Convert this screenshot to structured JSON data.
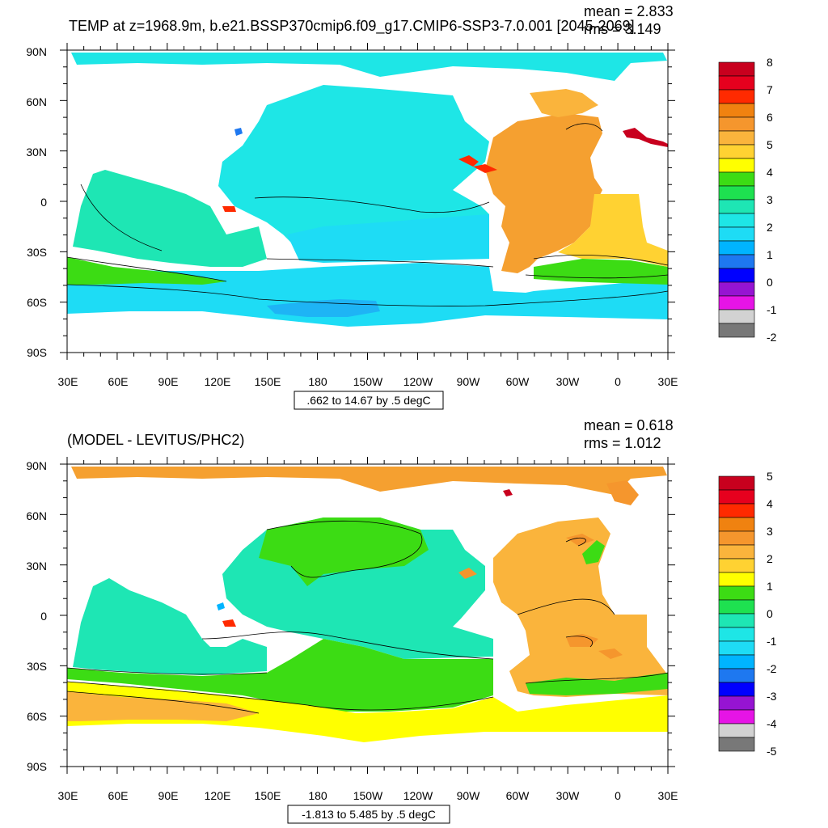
{
  "chart_data": [
    {
      "type": "heatmap",
      "title": "TEMP at z=1968.9m, b.e21.BSSP370cmip6.f09_g17.CMIP6-SSP3-7.0.001 [2045-2069]",
      "stats": {
        "mean": "mean = 2.833",
        "rms": "rms = 3.149"
      },
      "contour_info": ".662 to 14.67 by .5 degC",
      "lat_ticks": [
        "90N",
        "60N",
        "30N",
        "0",
        "30S",
        "60S",
        "90S"
      ],
      "lon_ticks": [
        "30E",
        "60E",
        "90E",
        "120E",
        "150E",
        "180",
        "150W",
        "120W",
        "90W",
        "60W",
        "30W",
        "0",
        "30E"
      ],
      "colorbar_labels": [
        "8",
        "7",
        "6",
        "5",
        "4",
        "3",
        "2",
        "1",
        "0",
        "-1",
        "-2"
      ],
      "colorbar_colors": [
        "#c8001e",
        "#e6001e",
        "#ff2a00",
        "#f08210",
        "#f5962d",
        "#fab43c",
        "#ffd232",
        "#ffff00",
        "#3cdc14",
        "#1ee150",
        "#1ee6b4",
        "#1ee6e6",
        "#1edcf5",
        "#00b4ff",
        "#1e78f0",
        "#0000ff",
        "#9614d2",
        "#e614e6",
        "#d2d2d2",
        "#787878"
      ],
      "regions": [
        {
          "name": "arctic",
          "color": "#1ee6e6"
        },
        {
          "name": "pacific",
          "color": "#1ee6e6"
        },
        {
          "name": "indian",
          "color": "#1ee6b4"
        },
        {
          "name": "southern",
          "color": "#1edcf5"
        },
        {
          "name": "atlantic",
          "color": "#f5962d"
        }
      ]
    },
    {
      "type": "heatmap",
      "title": "(MODEL - LEVITUS/PHC2)",
      "stats": {
        "mean": "mean = 0.618",
        "rms": "rms = 1.012"
      },
      "contour_info": "-1.813 to 5.485 by .5 degC",
      "lat_ticks": [
        "90N",
        "60N",
        "30N",
        "0",
        "30S",
        "60S",
        "90S"
      ],
      "lon_ticks": [
        "30E",
        "60E",
        "90E",
        "120E",
        "150E",
        "180",
        "150W",
        "120W",
        "90W",
        "60W",
        "30W",
        "0",
        "30E"
      ],
      "colorbar_labels": [
        "5",
        "4",
        "3",
        "2",
        "1",
        "0",
        "-1",
        "-2",
        "-3",
        "-4",
        "-5"
      ],
      "colorbar_colors": [
        "#c8001e",
        "#e6001e",
        "#ff2a00",
        "#f08210",
        "#f5962d",
        "#fab43c",
        "#ffd232",
        "#ffff00",
        "#3cdc14",
        "#1ee150",
        "#1ee6b4",
        "#1ee6e6",
        "#1edcf5",
        "#00b4ff",
        "#1e78f0",
        "#0000ff",
        "#9614d2",
        "#e614e6",
        "#d2d2d2",
        "#787878"
      ],
      "regions": [
        {
          "name": "arctic",
          "color": "#f5962d"
        },
        {
          "name": "pacific",
          "color": "#1ee6b4"
        },
        {
          "name": "indian",
          "color": "#1ee6b4"
        },
        {
          "name": "southern",
          "color": "#ffd232"
        },
        {
          "name": "atlantic",
          "color": "#fab43c"
        }
      ]
    }
  ]
}
